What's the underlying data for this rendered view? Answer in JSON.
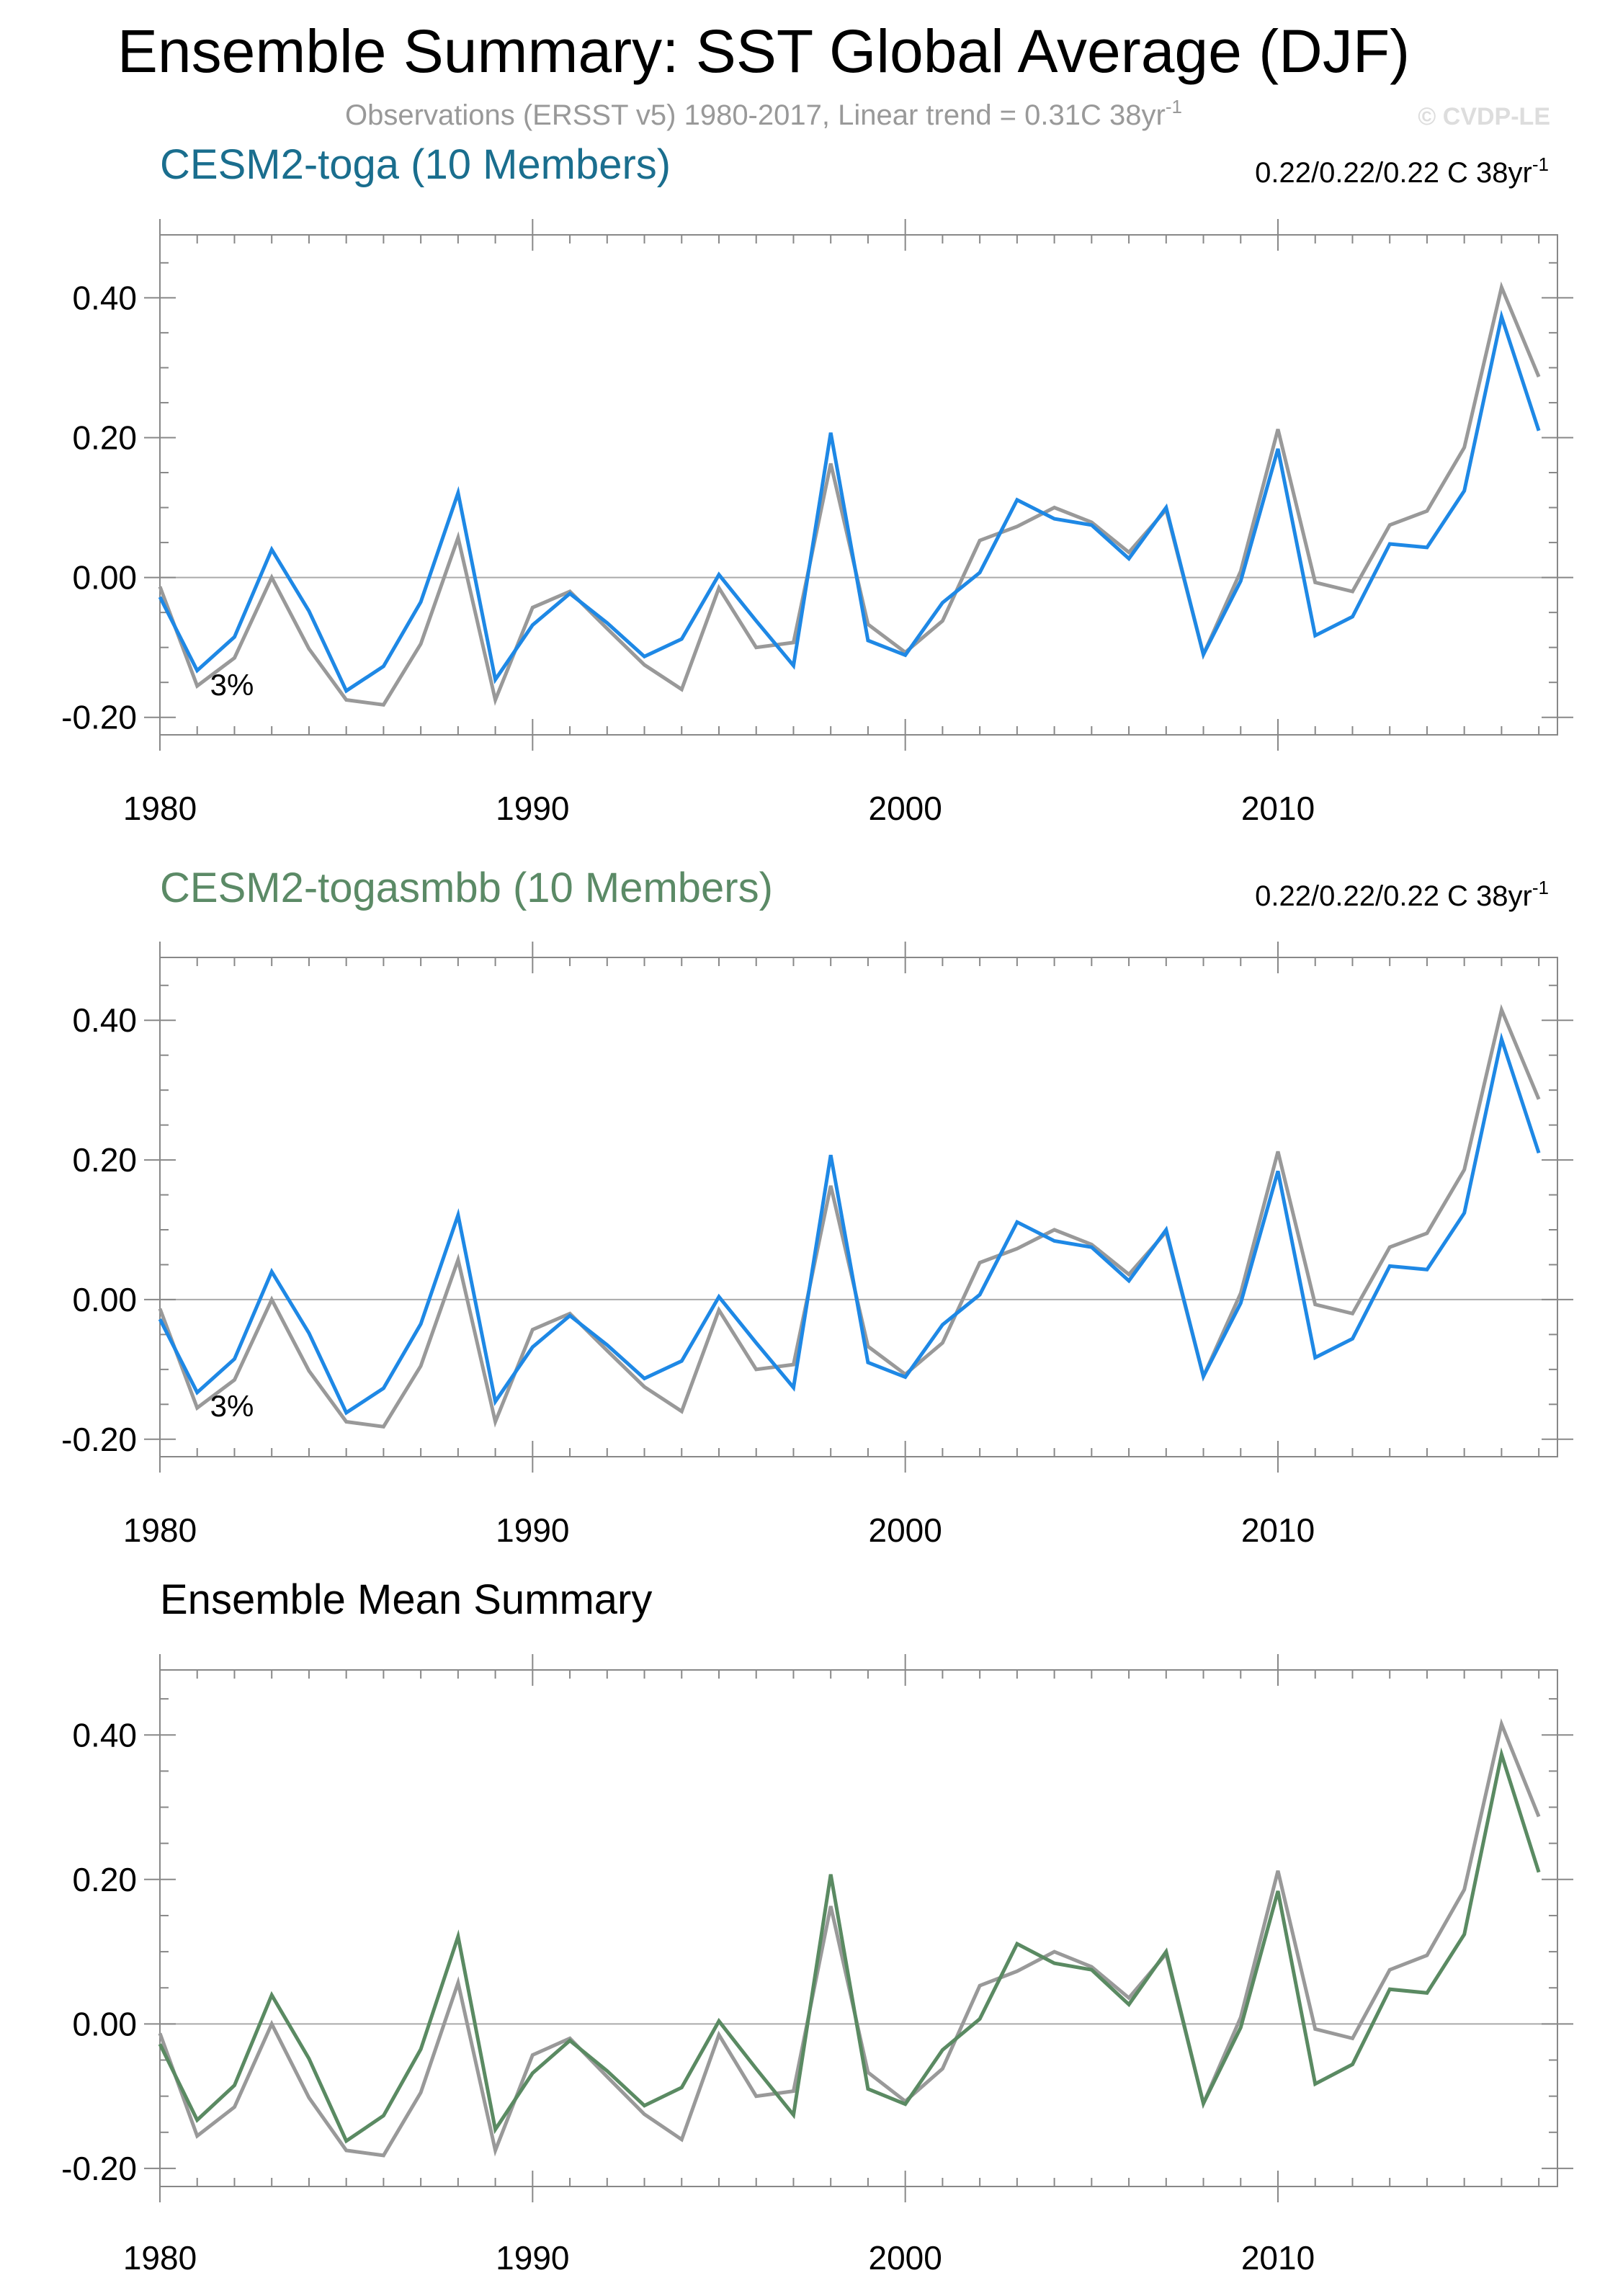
{
  "title": "Ensemble Summary: SST Global Average (DJF)",
  "subtitle": {
    "text": "Observations (ERSST v5) 1980-2017, Linear trend = 0.31C 38yr",
    "superscript": "-1"
  },
  "watermark": "© CVDP-LE",
  "colors": {
    "observations": "#999999",
    "blue_line": "#1e88e5",
    "green_line": "#5a8a62",
    "toga_title": "#1a6e8e",
    "togasmbb_title": "#5b8a66",
    "frame": "#888888",
    "zero_line": "#aaaaaa"
  },
  "panels": [
    {
      "title": "CESM2-toga (10 Members)",
      "title_color": "#1a6e8e",
      "trend_label": "0.22/0.22/0.22 C 38yr",
      "trend_superscript": "-1",
      "percent_label": "3%",
      "model_line_color": "#1e88e5"
    },
    {
      "title": "CESM2-togasmbb (10 Members)",
      "title_color": "#5b8a66",
      "trend_label": "0.22/0.22/0.22 C 38yr",
      "trend_superscript": "-1",
      "percent_label": "3%",
      "model_line_color": "#1e88e5"
    },
    {
      "title": "Ensemble Mean Summary",
      "title_color": "#000000",
      "trend_label": "",
      "trend_superscript": "",
      "percent_label": "",
      "model_line_color": "#5a8a62"
    }
  ],
  "chart_data": {
    "type": "line",
    "x": [
      1980,
      1981,
      1982,
      1983,
      1984,
      1985,
      1986,
      1987,
      1988,
      1989,
      1990,
      1991,
      1992,
      1993,
      1994,
      1995,
      1996,
      1997,
      1998,
      1999,
      2000,
      2001,
      2002,
      2003,
      2004,
      2005,
      2006,
      2007,
      2008,
      2009,
      2010,
      2011,
      2012,
      2013,
      2014,
      2015,
      2016,
      2017
    ],
    "xlim": [
      1980,
      2017.5
    ],
    "ylim": [
      -0.225,
      0.49
    ],
    "x_ticks": [
      1980,
      1990,
      2000,
      2010
    ],
    "x_tick_labels": [
      "1980",
      "1990",
      "2000",
      "2010"
    ],
    "y_ticks": [
      -0.2,
      0.0,
      0.2,
      0.4
    ],
    "y_tick_labels": [
      "-0.20",
      "0.00",
      "0.20",
      "0.40"
    ],
    "grid": false,
    "zero_line": true,
    "series": [
      {
        "name": "Observations (ERSST v5)",
        "values": [
          -0.013,
          -0.155,
          -0.115,
          0.0,
          -0.102,
          -0.175,
          -0.182,
          -0.095,
          0.057,
          -0.175,
          -0.043,
          -0.02,
          -0.073,
          -0.125,
          -0.16,
          -0.015,
          -0.1,
          -0.093,
          0.163,
          -0.067,
          -0.107,
          -0.062,
          0.053,
          0.073,
          0.1,
          0.079,
          0.036,
          0.097,
          -0.11,
          0.009,
          0.212,
          -0.007,
          -0.02,
          0.075,
          0.095,
          0.186,
          0.415,
          0.287
        ]
      },
      {
        "name": "Ensemble mean",
        "values": [
          -0.028,
          -0.133,
          -0.085,
          0.04,
          -0.048,
          -0.162,
          -0.127,
          -0.035,
          0.121,
          -0.146,
          -0.068,
          -0.023,
          -0.065,
          -0.113,
          -0.088,
          0.004,
          -0.062,
          -0.126,
          0.207,
          -0.09,
          -0.111,
          -0.036,
          0.007,
          0.111,
          0.084,
          0.075,
          0.027,
          0.1,
          -0.11,
          -0.005,
          0.184,
          -0.083,
          -0.056,
          0.048,
          0.043,
          0.124,
          0.373,
          0.21
        ]
      }
    ]
  }
}
